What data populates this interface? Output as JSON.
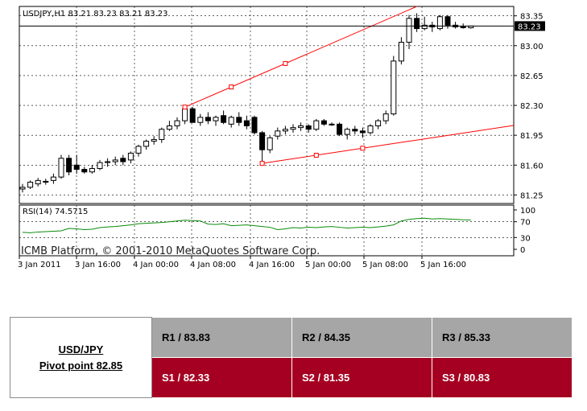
{
  "chart_data": {
    "type": "candlestick",
    "symbol_line": "USDJPY,H1  83.21 83.23 83.21 83.23",
    "copyright": "ICMB Platform, © 2001-2010 MetaQuotes Software Corp.",
    "price_ticks": [
      "83.35",
      "83.00",
      "82.65",
      "82.30",
      "81.95",
      "81.60",
      "81.25"
    ],
    "last_price_label": "83.23",
    "last_price": 83.23,
    "ylim": [
      81.15,
      83.46
    ],
    "x_ticks": [
      "3 Jan 2011",
      "3 Jan 16:00",
      "4 Jan 00:00",
      "4 Jan 08:00",
      "4 Jan 16:00",
      "5 Jan 00:00",
      "5 Jan 08:00",
      "5 Jan 16:00"
    ],
    "candles": [
      {
        "o": 81.32,
        "h": 81.38,
        "l": 81.28,
        "c": 81.34
      },
      {
        "o": 81.34,
        "h": 81.42,
        "l": 81.32,
        "c": 81.4
      },
      {
        "o": 81.38,
        "h": 81.45,
        "l": 81.35,
        "c": 81.42
      },
      {
        "o": 81.4,
        "h": 81.44,
        "l": 81.37,
        "c": 81.41
      },
      {
        "o": 81.42,
        "h": 81.5,
        "l": 81.38,
        "c": 81.46
      },
      {
        "o": 81.46,
        "h": 81.72,
        "l": 81.44,
        "c": 81.68
      },
      {
        "o": 81.68,
        "h": 81.72,
        "l": 81.48,
        "c": 81.52
      },
      {
        "o": 81.6,
        "h": 81.72,
        "l": 81.5,
        "c": 81.55
      },
      {
        "o": 81.55,
        "h": 81.58,
        "l": 81.5,
        "c": 81.52
      },
      {
        "o": 81.52,
        "h": 81.6,
        "l": 81.5,
        "c": 81.56
      },
      {
        "o": 81.56,
        "h": 81.66,
        "l": 81.54,
        "c": 81.63
      },
      {
        "o": 81.63,
        "h": 81.68,
        "l": 81.58,
        "c": 81.64
      },
      {
        "o": 81.64,
        "h": 81.7,
        "l": 81.6,
        "c": 81.66
      },
      {
        "o": 81.68,
        "h": 81.72,
        "l": 81.6,
        "c": 81.64
      },
      {
        "o": 81.66,
        "h": 81.76,
        "l": 81.62,
        "c": 81.74
      },
      {
        "o": 81.74,
        "h": 81.84,
        "l": 81.7,
        "c": 81.82
      },
      {
        "o": 81.82,
        "h": 81.9,
        "l": 81.78,
        "c": 81.88
      },
      {
        "o": 81.88,
        "h": 81.94,
        "l": 81.84,
        "c": 81.9
      },
      {
        "o": 81.9,
        "h": 82.04,
        "l": 81.86,
        "c": 82.02
      },
      {
        "o": 82.02,
        "h": 82.12,
        "l": 82.0,
        "c": 82.06
      },
      {
        "o": 82.06,
        "h": 82.16,
        "l": 82.02,
        "c": 82.12
      },
      {
        "o": 82.12,
        "h": 82.3,
        "l": 82.08,
        "c": 82.26
      },
      {
        "o": 82.26,
        "h": 82.28,
        "l": 82.12,
        "c": 82.1
      },
      {
        "o": 82.1,
        "h": 82.2,
        "l": 82.06,
        "c": 82.16
      },
      {
        "o": 82.16,
        "h": 82.22,
        "l": 82.08,
        "c": 82.12
      },
      {
        "o": 82.12,
        "h": 82.18,
        "l": 82.06,
        "c": 82.16
      },
      {
        "o": 82.18,
        "h": 82.24,
        "l": 82.08,
        "c": 82.1
      },
      {
        "o": 82.08,
        "h": 82.18,
        "l": 82.04,
        "c": 82.16
      },
      {
        "o": 82.16,
        "h": 82.22,
        "l": 82.06,
        "c": 82.1
      },
      {
        "o": 82.12,
        "h": 82.18,
        "l": 82.02,
        "c": 82.06
      },
      {
        "o": 82.16,
        "h": 82.18,
        "l": 81.96,
        "c": 81.98
      },
      {
        "o": 81.98,
        "h": 82.0,
        "l": 81.64,
        "c": 81.78
      },
      {
        "o": 81.78,
        "h": 81.94,
        "l": 81.74,
        "c": 81.92
      },
      {
        "o": 81.94,
        "h": 82.04,
        "l": 81.9,
        "c": 82.0
      },
      {
        "o": 82.0,
        "h": 82.06,
        "l": 81.96,
        "c": 82.02
      },
      {
        "o": 82.02,
        "h": 82.08,
        "l": 81.98,
        "c": 82.04
      },
      {
        "o": 82.04,
        "h": 82.1,
        "l": 82.0,
        "c": 82.06
      },
      {
        "o": 82.06,
        "h": 82.08,
        "l": 81.98,
        "c": 82.02
      },
      {
        "o": 82.02,
        "h": 82.14,
        "l": 82.0,
        "c": 82.12
      },
      {
        "o": 82.12,
        "h": 82.14,
        "l": 82.06,
        "c": 82.08
      },
      {
        "o": 82.08,
        "h": 82.1,
        "l": 82.06,
        "c": 82.08
      },
      {
        "o": 82.08,
        "h": 82.1,
        "l": 81.94,
        "c": 81.96
      },
      {
        "o": 81.96,
        "h": 82.04,
        "l": 81.9,
        "c": 82.02
      },
      {
        "o": 82.02,
        "h": 82.06,
        "l": 81.96,
        "c": 82.0
      },
      {
        "o": 82.0,
        "h": 82.04,
        "l": 81.92,
        "c": 81.98
      },
      {
        "o": 81.98,
        "h": 82.08,
        "l": 81.96,
        "c": 82.06
      },
      {
        "o": 82.06,
        "h": 82.14,
        "l": 82.02,
        "c": 82.12
      },
      {
        "o": 82.12,
        "h": 82.24,
        "l": 82.08,
        "c": 82.2
      },
      {
        "o": 82.2,
        "h": 82.88,
        "l": 82.18,
        "c": 82.82
      },
      {
        "o": 82.82,
        "h": 83.1,
        "l": 82.78,
        "c": 83.04
      },
      {
        "o": 83.04,
        "h": 83.36,
        "l": 82.96,
        "c": 83.32
      },
      {
        "o": 83.32,
        "h": 83.38,
        "l": 83.16,
        "c": 83.2
      },
      {
        "o": 83.2,
        "h": 83.34,
        "l": 83.18,
        "c": 83.24
      },
      {
        "o": 83.24,
        "h": 83.28,
        "l": 83.16,
        "c": 83.22
      },
      {
        "o": 83.2,
        "h": 83.36,
        "l": 83.18,
        "c": 83.34
      },
      {
        "o": 83.34,
        "h": 83.36,
        "l": 83.2,
        "c": 83.24
      },
      {
        "o": 83.24,
        "h": 83.28,
        "l": 83.2,
        "c": 83.22
      },
      {
        "o": 83.22,
        "h": 83.26,
        "l": 83.2,
        "c": 83.22
      },
      {
        "o": 83.21,
        "h": 83.23,
        "l": 83.2,
        "c": 83.23
      }
    ],
    "channel": {
      "upper_points": [
        {
          "i": 21,
          "price": 82.28
        },
        {
          "i": 51,
          "price": 83.46
        }
      ],
      "lower_points": [
        {
          "i": 31,
          "price": 81.62
        },
        {
          "i": 69,
          "price": 82.14
        }
      ],
      "markers": [
        {
          "line": "upper",
          "i": 21
        },
        {
          "line": "upper",
          "i": 27
        },
        {
          "line": "upper",
          "i": 34
        },
        {
          "line": "lower",
          "i": 31
        },
        {
          "line": "lower",
          "i": 38
        },
        {
          "line": "lower",
          "i": 44
        }
      ]
    },
    "rsi": {
      "label": "RSI(14) 74.5715",
      "ticks": [
        "100",
        "70",
        "30",
        "0"
      ],
      "ylim": [
        0,
        100
      ],
      "values": [
        43,
        42,
        44,
        45,
        46,
        47,
        53,
        52,
        50,
        51,
        55,
        57,
        58,
        60,
        62,
        65,
        66,
        67,
        68,
        70,
        72,
        74,
        73,
        72,
        64,
        63,
        65,
        60,
        61,
        62,
        60,
        58,
        56,
        50,
        52,
        55,
        54,
        56,
        55,
        57,
        58,
        56,
        54,
        55,
        56,
        55,
        57,
        59,
        62,
        72,
        76,
        78,
        79,
        77,
        78,
        77,
        76,
        75,
        74.57
      ]
    }
  },
  "pivot": {
    "symbol": "USD/JPY",
    "pivot_text": "Pivot point 82.85",
    "resistance": [
      "R1 / 83.83",
      "R2 / 84.35",
      "R3 / 85.33"
    ],
    "support": [
      "S1 / 82.33",
      "S2 / 81.35",
      "S3 / 80.83"
    ]
  }
}
